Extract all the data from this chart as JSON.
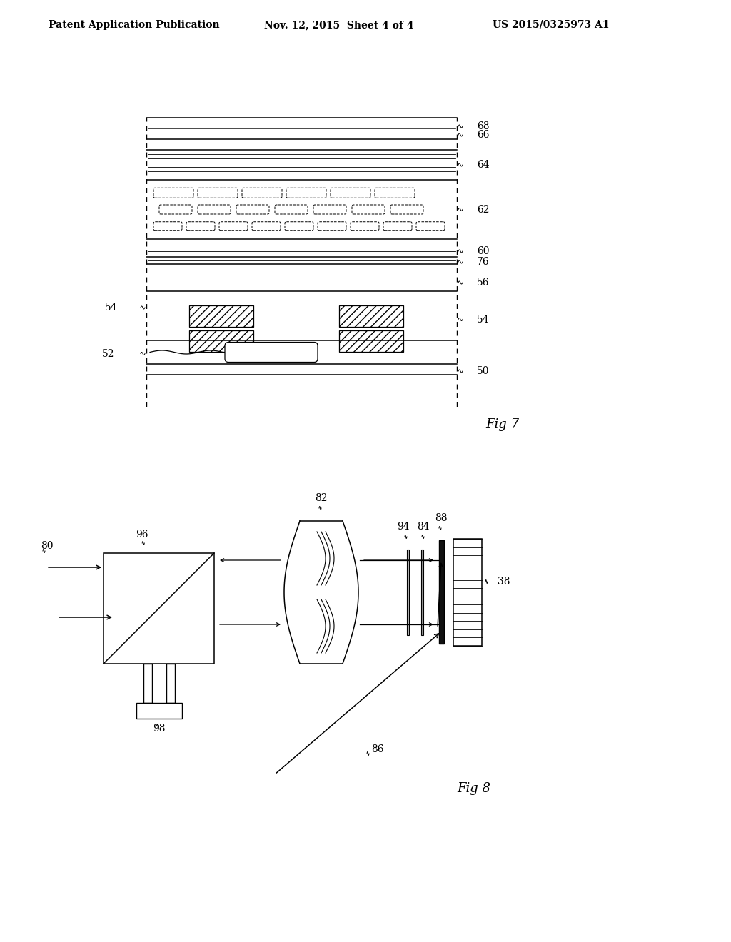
{
  "bg_color": "#ffffff",
  "header_left": "Patent Application Publication",
  "header_mid": "Nov. 12, 2015  Sheet 4 of 4",
  "header_right": "US 2015/0325973 A1",
  "fig7_label": "Fig 7",
  "fig8_label": "Fig 8"
}
